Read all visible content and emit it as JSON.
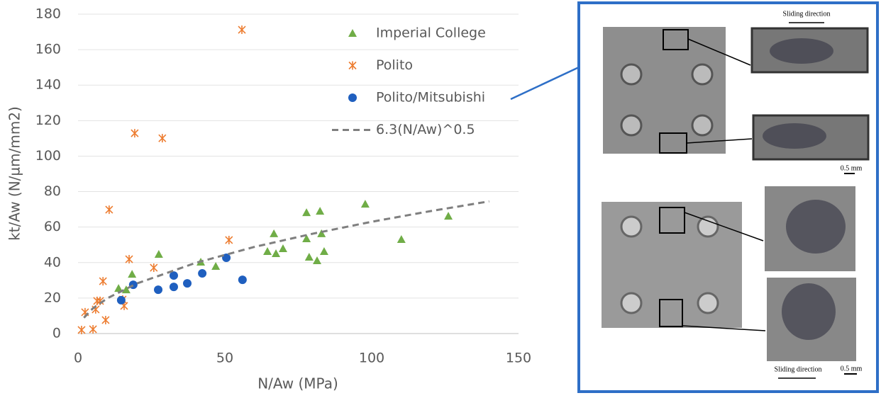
{
  "chart_data": {
    "type": "scatter",
    "x_label": "N/Aw (MPa)",
    "y_label": "kt/Aw  (N/µm/mm2)",
    "xlim": [
      0,
      150
    ],
    "xticks": [
      0,
      50,
      100,
      150
    ],
    "ylim": [
      0,
      180
    ],
    "yticks": [
      0,
      20,
      40,
      60,
      80,
      100,
      120,
      140,
      160,
      180
    ],
    "grid": true,
    "legend": "top-right",
    "series": [
      {
        "name": "Imperial College",
        "color": "#70ad47",
        "marker": "triangle",
        "x": [
          13.8,
          16.4,
          18.4,
          27.5,
          41.8,
          46.9,
          64.5,
          66.7,
          67.4,
          69.8,
          77.8,
          77.8,
          78.7,
          81.4,
          82.4,
          82.9,
          83.8,
          97.8,
          110.1,
          126.1
        ],
        "values": [
          25.5,
          24.7,
          33.5,
          44.7,
          40.3,
          37.9,
          46.3,
          56.3,
          45.1,
          47.9,
          68.2,
          53.5,
          43.1,
          41.1,
          69.0,
          56.3,
          46.3,
          73.0,
          53.1,
          66.2
        ]
      },
      {
        "name": "Polito",
        "color": "#ed7d31",
        "marker": "asterisk",
        "x": [
          1.2,
          2.4,
          5.1,
          6.0,
          6.5,
          7.5,
          8.5,
          9.4,
          10.6,
          15.2,
          15.7,
          17.4,
          19.3,
          25.8,
          28.7,
          51.4,
          55.8
        ],
        "values": [
          2,
          12,
          2.4,
          13.6,
          18.4,
          18.4,
          29.5,
          7.6,
          69.8,
          19.2,
          15.6,
          41.9,
          112.9,
          37.1,
          110.1,
          52.7,
          171.2
        ]
      },
      {
        "name": "Polito/Mitsubishi",
        "color": "#1f5fbf",
        "marker": "circle",
        "x": [
          14.7,
          18.8,
          27.3,
          32.6,
          32.6,
          37.2,
          42.3,
          50.5,
          56.0
        ],
        "values": [
          18.8,
          27.5,
          24.7,
          32.7,
          26.3,
          28.3,
          33.9,
          42.7,
          30.3
        ]
      },
      {
        "name": "6.3(N/Aw)^0.5",
        "color": "#7f7f7f",
        "marker": "dashed-line",
        "x": [
          2,
          5,
          10,
          20,
          40,
          60,
          80,
          100,
          120,
          140
        ],
        "values": [
          8.9,
          14.1,
          19.9,
          28.2,
          39.8,
          48.8,
          56.3,
          63.0,
          69.0,
          74.5
        ]
      }
    ]
  },
  "panel": {
    "labels": [
      "Sliding direction",
      "0.5 mm",
      "Sliding direction",
      "0.5 mm"
    ]
  }
}
